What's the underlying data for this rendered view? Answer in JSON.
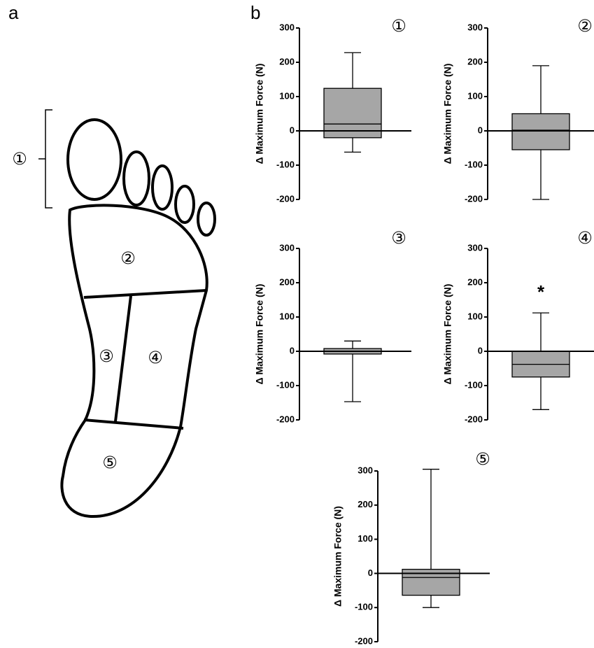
{
  "panel_labels": [
    "a",
    "b"
  ],
  "foot": {
    "bracket_label": "①",
    "regions": [
      "②",
      "③",
      "④",
      "⑤"
    ]
  },
  "chart_data": [
    {
      "type": "box",
      "title": "①",
      "y_label": "Δ Maximum Force (N)",
      "ylim": [
        -200,
        300
      ],
      "yticks": [
        -200,
        -100,
        0,
        100,
        200,
        300
      ],
      "color": "#a6a6a6",
      "whisker_low": -62,
      "q1": -20,
      "median": 20,
      "q3": 124,
      "whisker_high": 228
    },
    {
      "type": "box",
      "title": "②",
      "y_label": "Δ Maximum Force (N)",
      "ylim": [
        -200,
        300
      ],
      "yticks": [
        -200,
        -100,
        0,
        100,
        200,
        300
      ],
      "color": "#a6a6a6",
      "whisker_low": -200,
      "q1": -55,
      "median": 2,
      "q3": 50,
      "whisker_high": 190
    },
    {
      "type": "box",
      "title": "③",
      "y_label": "Δ Maximum Force (N)",
      "ylim": [
        -200,
        300
      ],
      "yticks": [
        -200,
        -100,
        0,
        100,
        200,
        300
      ],
      "color": "#a6a6a6",
      "whisker_low": -147,
      "q1": -8,
      "median": 0,
      "q3": 8,
      "whisker_high": 30
    },
    {
      "type": "box",
      "title": "④",
      "y_label": "Δ Maximum Force (N)",
      "ylim": [
        -200,
        300
      ],
      "yticks": [
        -200,
        -100,
        0,
        100,
        200,
        300
      ],
      "color": "#a6a6a6",
      "whisker_low": -170,
      "q1": -75,
      "median": -38,
      "q3": 0,
      "whisker_high": 112,
      "annotation": "*"
    },
    {
      "type": "box",
      "title": "⑤",
      "y_label": "Δ Maximum Force (N)",
      "ylim": [
        -200,
        300
      ],
      "yticks": [
        -200,
        -100,
        0,
        100,
        200,
        300
      ],
      "color": "#a6a6a6",
      "whisker_low": -100,
      "q1": -64,
      "median": -12,
      "q3": 12,
      "whisker_high": 305
    }
  ]
}
